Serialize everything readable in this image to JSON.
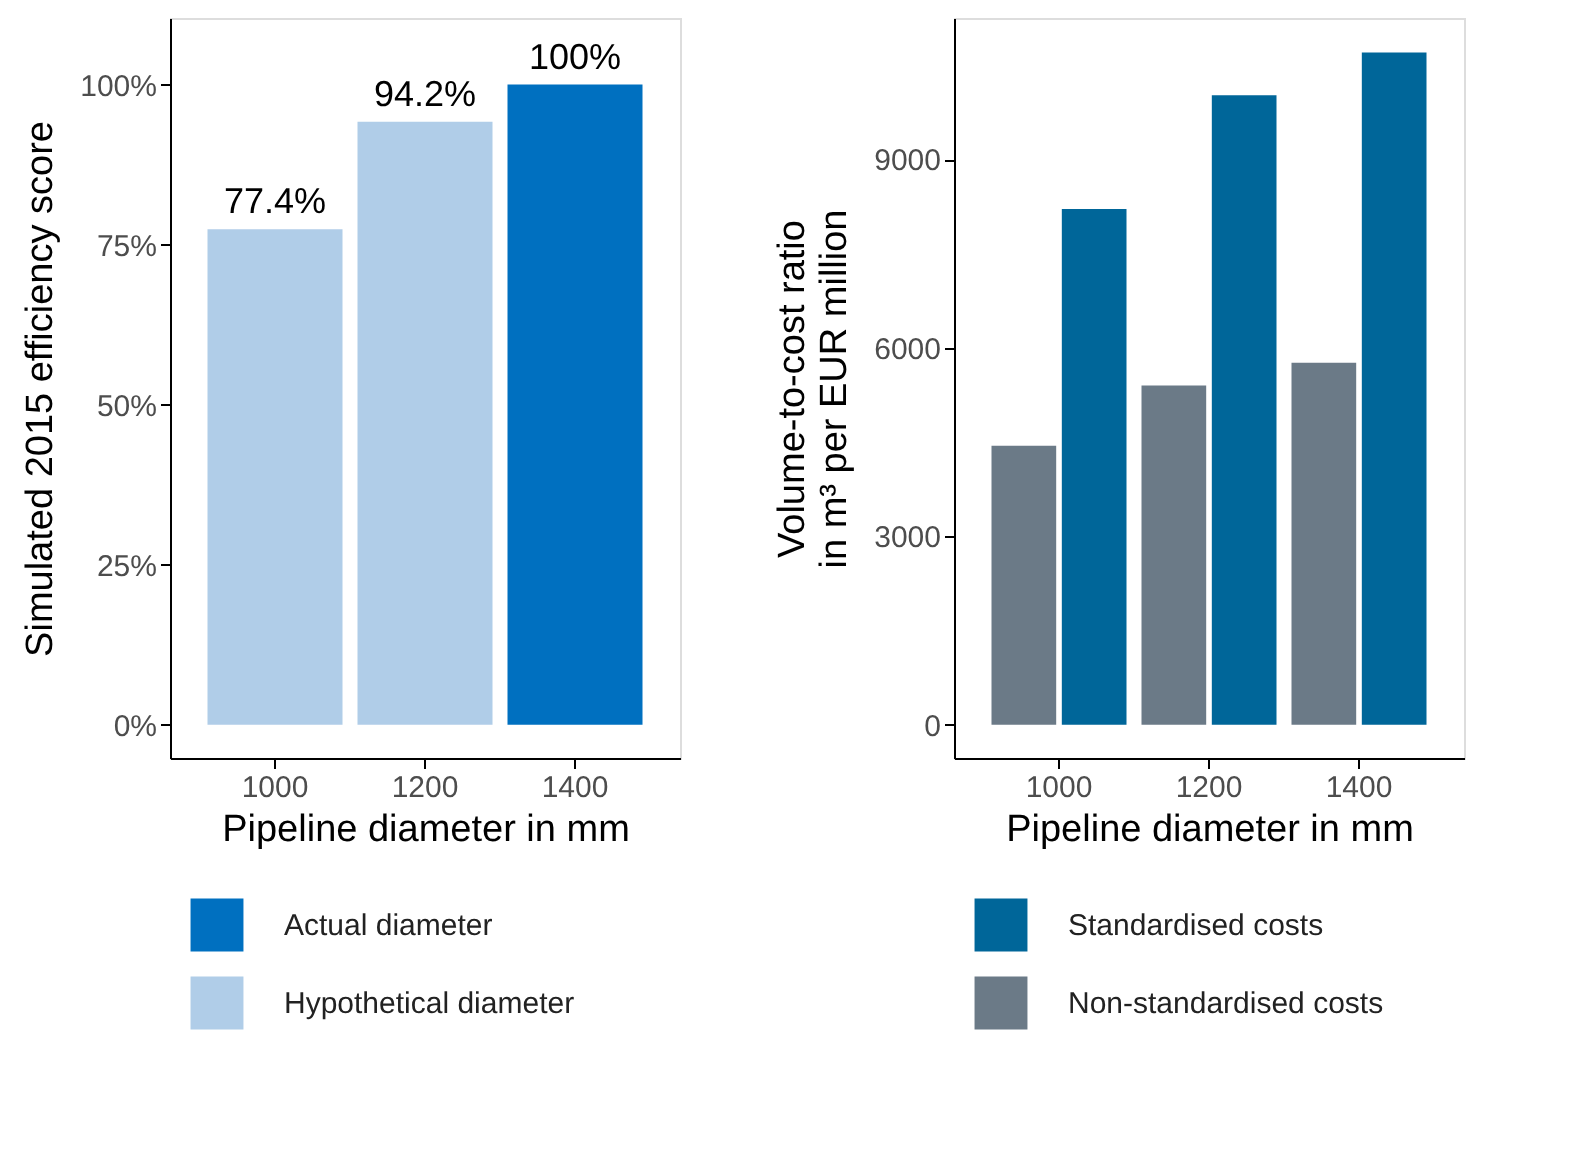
{
  "chart_data": [
    {
      "type": "bar",
      "stacked": true,
      "xlabel": "Pipeline diameter in mm",
      "ylabel": "Simulated 2015 efficiency score",
      "categories": [
        "1000",
        "1200",
        "1400"
      ],
      "series": [
        {
          "name": "Actual diameter",
          "color": "#0070c0",
          "values": [
            null,
            null,
            100
          ],
          "value_labels": [
            null,
            null,
            "100%"
          ]
        },
        {
          "name": "Hypothetical diameter",
          "color": "#b0cde8",
          "values": [
            77.4,
            94.2,
            null
          ],
          "value_labels": [
            "77.4%",
            "94.2%",
            null
          ]
        }
      ],
      "ylim": [
        -5.2,
        110.4
      ],
      "yticks": [
        {
          "value": 0,
          "label": "0%"
        },
        {
          "value": 25,
          "label": "25%"
        },
        {
          "value": 50,
          "label": "50%"
        },
        {
          "value": 75,
          "label": "75%"
        },
        {
          "value": 100,
          "label": "100%"
        }
      ],
      "grid": false,
      "legend": "bottom"
    },
    {
      "type": "bar",
      "xlabel": "Pipeline diameter in mm",
      "ylabel": "Volume-to-cost ratio\nin m³ per EUR million",
      "categories": [
        "1000",
        "1200",
        "1400"
      ],
      "series": [
        {
          "name": "Standardised costs",
          "color": "#006699",
          "values": [
            8210,
            10020,
            10700
          ]
        },
        {
          "name": "Non-standardised costs",
          "color": "#6b7a87",
          "values": [
            4440,
            5400,
            5760
          ]
        }
      ],
      "ylim": [
        -530,
        11250
      ],
      "yticks": [
        0,
        3000,
        6000,
        9000
      ],
      "grid": false,
      "legend": "bottom"
    }
  ]
}
